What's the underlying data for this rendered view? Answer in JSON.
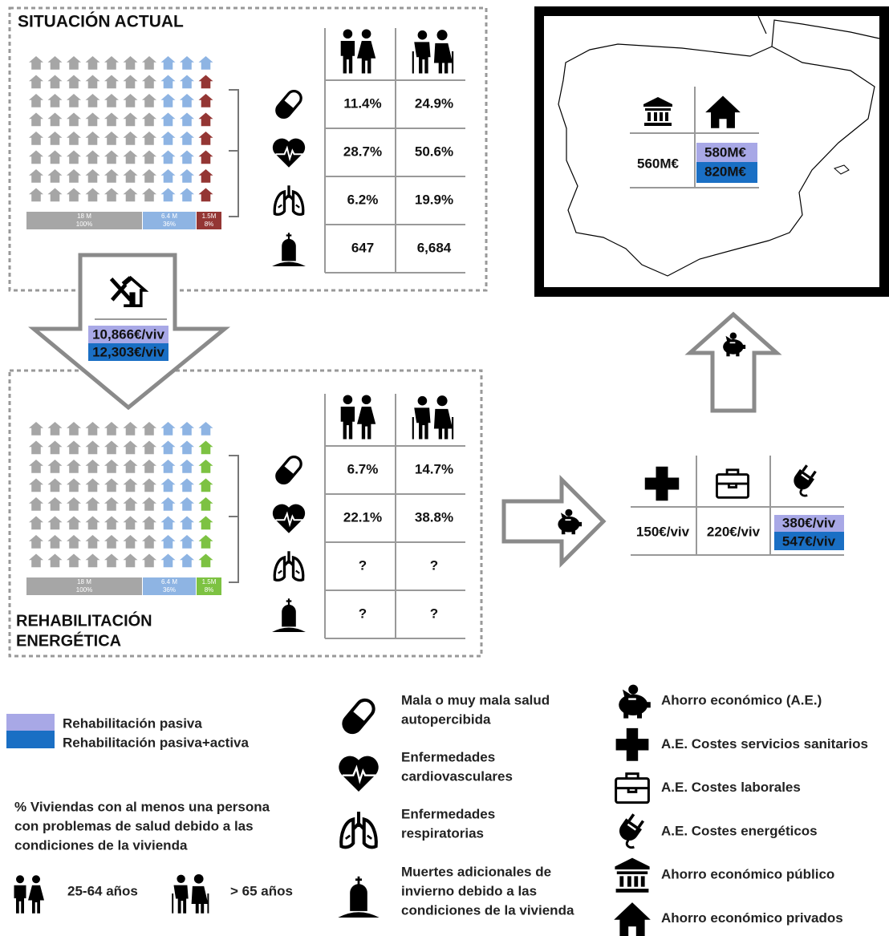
{
  "situacion_actual": {
    "title": "SITUACIÓN ACTUAL",
    "bars": [
      {
        "count": "18 M",
        "share": "100%"
      },
      {
        "count": "6.4 M",
        "share": "36%"
      },
      {
        "count": "1.5M",
        "share": "8%"
      }
    ],
    "table": [
      [
        "11.4%",
        "24.9%"
      ],
      [
        "28.7%",
        "50.6%"
      ],
      [
        "6.2%",
        "19.9%"
      ],
      [
        "647",
        "6,684"
      ]
    ]
  },
  "rehabilitacion": {
    "cost_pasiva": "10,866€/viv",
    "cost_activa": "12,303€/viv"
  },
  "rehabilitacion_energetica": {
    "title": [
      "REHABILITACIÓN",
      "ENERGÉTICA"
    ],
    "bars": [
      {
        "count": "18 M",
        "share": "100%"
      },
      {
        "count": "6.4 M",
        "share": "36%"
      },
      {
        "count": "1.5M",
        "share": "8%"
      }
    ],
    "table": [
      [
        "6.7%",
        "14.7%"
      ],
      [
        "22.1%",
        "38.8%"
      ],
      [
        "?",
        "?"
      ],
      [
        "?",
        "?"
      ]
    ]
  },
  "ahorro_por_vivienda": {
    "sanitarios": "150€/viv",
    "laborales": "220€/viv",
    "energeticos_pasiva": "380€/viv",
    "energeticos_activa": "547€/viv"
  },
  "ahorro_nacional": {
    "publico": "560M€",
    "privado_pasiva": "580M€",
    "privado_activa": "820M€"
  },
  "legend": {
    "rehab": [
      "Rehabilitación pasiva",
      "Rehabilitación pasiva+activa"
    ],
    "note": [
      "% Viviendas con al menos una persona",
      "con problemas de salud debido a las",
      "condiciones  de la vivienda"
    ],
    "ages": [
      "25-64 años",
      "> 65 años"
    ],
    "health": [
      [
        "Mala o muy mala salud",
        "autopercibida"
      ],
      [
        "Enfermedades",
        "cardiovasculares"
      ],
      [
        "Enfermedades",
        "respiratorias"
      ],
      [
        "Muertes adicionales de",
        "invierno debido a las",
        "condiciones  de la vivienda"
      ]
    ],
    "savings": [
      "Ahorro económico (A.E.)",
      "A.E. Costes servicios sanitarios",
      "A.E. Costes laborales",
      "A.E. Costes energéticos",
      "Ahorro económico público",
      "Ahorro económico privados"
    ]
  }
}
